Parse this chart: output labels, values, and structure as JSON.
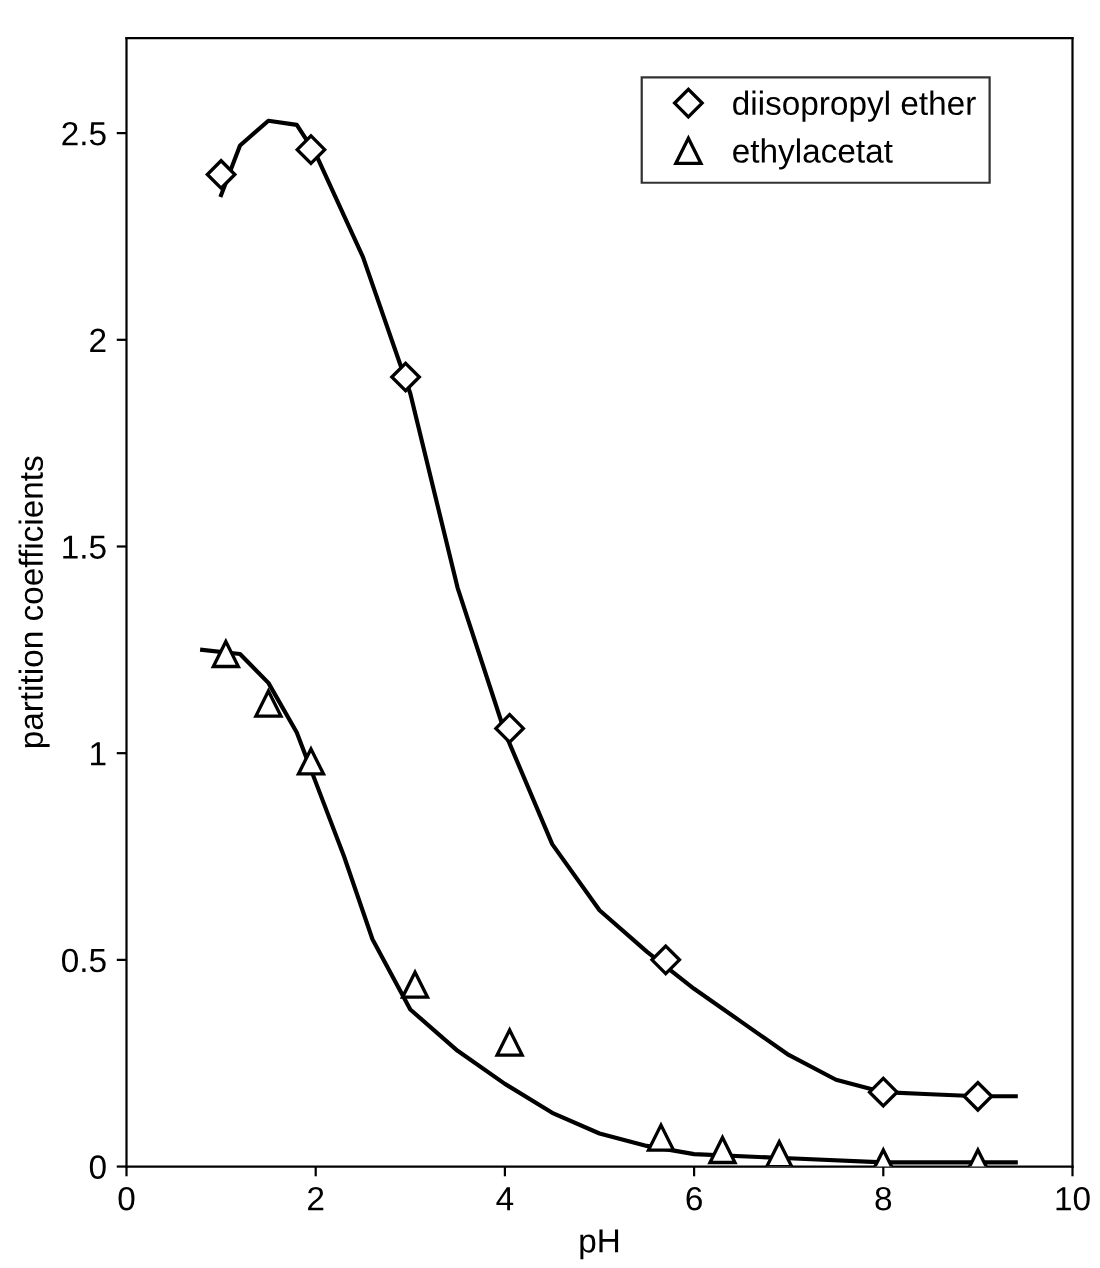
{
  "chart_data": {
    "type": "scatter",
    "xlabel": "pH",
    "ylabel": "partition coefficients",
    "legend": "top right",
    "grid": false,
    "xlim": [
      0,
      10
    ],
    "xticks": [
      0,
      2,
      4,
      6,
      8,
      10
    ],
    "ylim": [
      0,
      2.73
    ],
    "yticks": [
      0,
      0.5,
      1,
      1.5,
      2,
      2.5
    ],
    "series": [
      {
        "name": "diisopropyl ether",
        "marker": "diamond",
        "color": "#000000",
        "x": [
          1.0,
          1.95,
          2.95,
          4.05,
          5.7,
          8.0,
          9.0
        ],
        "values": [
          2.4,
          2.46,
          1.91,
          1.06,
          0.5,
          0.18,
          0.17
        ]
      },
      {
        "name": "ethylacetat",
        "marker": "triangle",
        "color": "#000000",
        "x": [
          1.05,
          1.5,
          1.95,
          3.05,
          4.05,
          5.65,
          6.3,
          6.9,
          8.0,
          9.0
        ],
        "values": [
          1.24,
          1.12,
          0.98,
          0.44,
          0.3,
          0.07,
          0.04,
          0.03,
          0.01,
          0.01
        ]
      },
      {
        "type": "line",
        "marker": "none",
        "color": "#000000",
        "x": [
          1.0,
          1.2,
          1.5,
          1.8,
          2.0,
          2.5,
          3.0,
          3.5,
          4.0,
          4.5,
          5.0,
          5.5,
          6.0,
          6.5,
          7.0,
          7.5,
          8.0,
          8.5,
          9.0,
          9.4
        ],
        "values": [
          2.35,
          2.47,
          2.53,
          2.52,
          2.45,
          2.2,
          1.87,
          1.4,
          1.05,
          0.78,
          0.62,
          0.52,
          0.43,
          0.35,
          0.27,
          0.21,
          0.18,
          0.175,
          0.17,
          0.17
        ]
      },
      {
        "type": "line",
        "marker": "none",
        "color": "#000000",
        "x": [
          0.8,
          1.2,
          1.5,
          1.8,
          2.0,
          2.3,
          2.6,
          3.0,
          3.5,
          4.0,
          4.5,
          5.0,
          5.5,
          6.0,
          7.0,
          8.0,
          9.4
        ],
        "values": [
          1.25,
          1.24,
          1.17,
          1.05,
          0.93,
          0.75,
          0.55,
          0.38,
          0.28,
          0.2,
          0.13,
          0.08,
          0.05,
          0.03,
          0.02,
          0.01,
          0.01
        ]
      }
    ]
  }
}
